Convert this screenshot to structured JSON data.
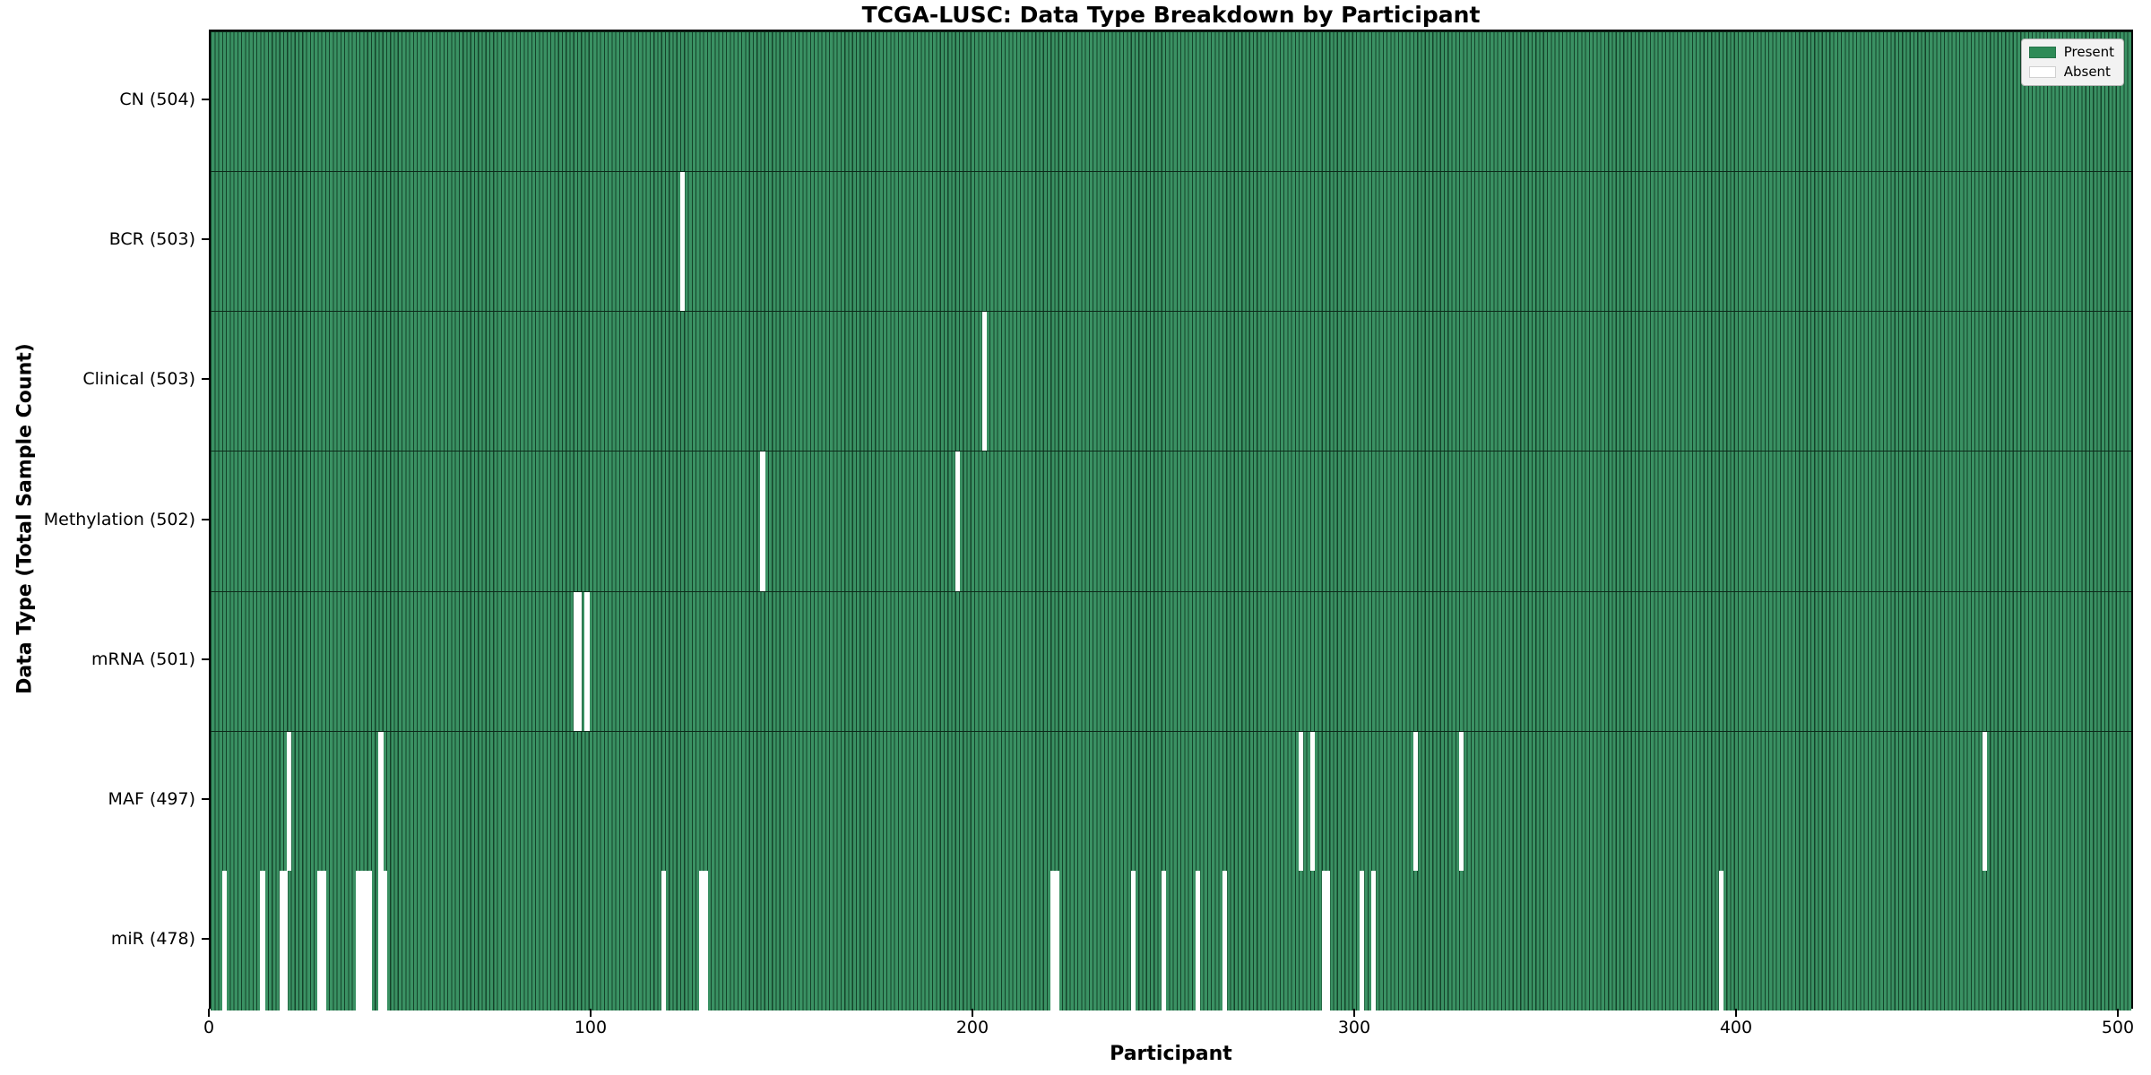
{
  "chart_data": {
    "type": "heatmap",
    "title": "TCGA-LUSC: Data Type Breakdown by Participant",
    "xlabel": "Participant",
    "ylabel": "Data Type (Total Sample Count)",
    "x_ticks": [
      0,
      100,
      200,
      300,
      400,
      500
    ],
    "x_range": [
      0,
      504
    ],
    "total_participants": 504,
    "grid": false,
    "legend_position": "upper right",
    "legend": [
      {
        "label": "Present",
        "color": "#2e8b57"
      },
      {
        "label": "Absent",
        "color": "#ffffff"
      }
    ],
    "rows": [
      {
        "name": "CN",
        "total": 504,
        "label": "CN (504)",
        "absent": []
      },
      {
        "name": "BCR",
        "total": 503,
        "label": "BCR (503)",
        "absent": [
          123
        ]
      },
      {
        "name": "Clinical",
        "total": 503,
        "label": "Clinical (503)",
        "absent": [
          202
        ]
      },
      {
        "name": "Methylation",
        "total": 502,
        "label": "Methylation (502)",
        "absent": [
          144,
          195
        ]
      },
      {
        "name": "mRNA",
        "total": 501,
        "label": "mRNA (501)",
        "absent": [
          95,
          96,
          98
        ]
      },
      {
        "name": "MAF",
        "total": 497,
        "label": "MAF (497)",
        "absent": [
          20,
          44,
          285,
          288,
          315,
          327,
          464
        ]
      },
      {
        "name": "miR",
        "total": 478,
        "label": "miR (478)",
        "absent": [
          3,
          13,
          18,
          19,
          28,
          29,
          38,
          39,
          40,
          41,
          44,
          45,
          118,
          128,
          129,
          220,
          221,
          241,
          249,
          258,
          265,
          291,
          292,
          301,
          304,
          395
        ]
      }
    ],
    "colors": {
      "present_fill": "#3a9163",
      "present_edge": "#14432a",
      "absent_fill": "#ffffff",
      "legend_present": "#2e8b57"
    }
  }
}
